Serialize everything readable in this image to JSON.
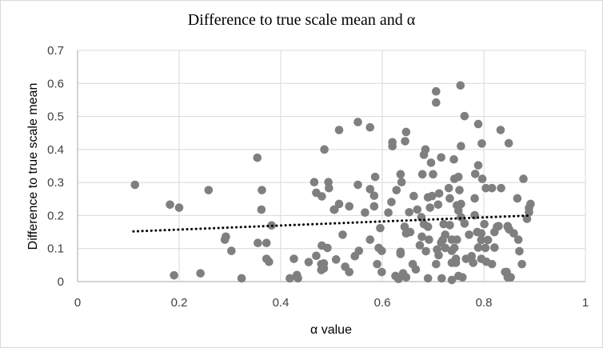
{
  "chart_data": {
    "type": "scatter",
    "title": "Difference to true scale mean and α",
    "xlabel": "α value",
    "ylabel": "Difference to true scale mean",
    "xlim": [
      0,
      1
    ],
    "ylim": [
      0,
      0.7
    ],
    "xticks": [
      "0",
      "0.2",
      "0.4",
      "0.6",
      "0.8",
      "1"
    ],
    "yticks": [
      "0",
      "0.1",
      "0.2",
      "0.3",
      "0.4",
      "0.5",
      "0.6",
      "0.7"
    ],
    "grid": true,
    "marker_color": "#7f7f7f",
    "trendline": {
      "style": "dotted",
      "color": "#000000",
      "x": [
        0.11,
        0.89
      ],
      "y": [
        0.152,
        0.2
      ]
    },
    "points": [
      [
        0.113,
        0.293
      ],
      [
        0.182,
        0.233
      ],
      [
        0.2,
        0.224
      ],
      [
        0.19,
        0.019
      ],
      [
        0.242,
        0.025
      ],
      [
        0.258,
        0.277
      ],
      [
        0.292,
        0.136
      ],
      [
        0.29,
        0.127
      ],
      [
        0.303,
        0.093
      ],
      [
        0.323,
        0.01
      ],
      [
        0.354,
        0.375
      ],
      [
        0.363,
        0.277
      ],
      [
        0.362,
        0.218
      ],
      [
        0.355,
        0.117
      ],
      [
        0.372,
        0.117
      ],
      [
        0.382,
        0.17
      ],
      [
        0.372,
        0.069
      ],
      [
        0.377,
        0.06
      ],
      [
        0.418,
        0.01
      ],
      [
        0.432,
        0.02
      ],
      [
        0.434,
        0.01
      ],
      [
        0.426,
        0.069
      ],
      [
        0.455,
        0.059
      ],
      [
        0.47,
        0.078
      ],
      [
        0.48,
        0.053
      ],
      [
        0.48,
        0.035
      ],
      [
        0.481,
        0.109
      ],
      [
        0.492,
        0.102
      ],
      [
        0.466,
        0.301
      ],
      [
        0.494,
        0.301
      ],
      [
        0.495,
        0.283
      ],
      [
        0.47,
        0.269
      ],
      [
        0.481,
        0.258
      ],
      [
        0.486,
        0.4
      ],
      [
        0.505,
        0.218
      ],
      [
        0.515,
        0.459
      ],
      [
        0.552,
        0.483
      ],
      [
        0.576,
        0.467
      ],
      [
        0.506,
        0.218
      ],
      [
        0.515,
        0.235
      ],
      [
        0.535,
        0.228
      ],
      [
        0.522,
        0.142
      ],
      [
        0.509,
        0.067
      ],
      [
        0.485,
        0.055
      ],
      [
        0.485,
        0.04
      ],
      [
        0.527,
        0.045
      ],
      [
        0.535,
        0.029
      ],
      [
        0.546,
        0.077
      ],
      [
        0.554,
        0.093
      ],
      [
        0.552,
        0.293
      ],
      [
        0.576,
        0.28
      ],
      [
        0.584,
        0.26
      ],
      [
        0.584,
        0.228
      ],
      [
        0.586,
        0.317
      ],
      [
        0.566,
        0.209
      ],
      [
        0.576,
        0.127
      ],
      [
        0.596,
        0.162
      ],
      [
        0.59,
        0.053
      ],
      [
        0.599,
        0.029
      ],
      [
        0.593,
        0.102
      ],
      [
        0.599,
        0.093
      ],
      [
        0.612,
        0.209
      ],
      [
        0.618,
        0.241
      ],
      [
        0.628,
        0.277
      ],
      [
        0.636,
        0.325
      ],
      [
        0.638,
        0.301
      ],
      [
        0.62,
        0.422
      ],
      [
        0.62,
        0.41
      ],
      [
        0.647,
        0.453
      ],
      [
        0.645,
        0.425
      ],
      [
        0.636,
        0.09
      ],
      [
        0.636,
        0.084
      ],
      [
        0.626,
        0.017
      ],
      [
        0.641,
        0.025
      ],
      [
        0.647,
        0.013
      ],
      [
        0.632,
        0.008
      ],
      [
        0.644,
        0.166
      ],
      [
        0.647,
        0.146
      ],
      [
        0.655,
        0.15
      ],
      [
        0.653,
        0.21
      ],
      [
        0.662,
        0.259
      ],
      [
        0.669,
        0.218
      ],
      [
        0.66,
        0.053
      ],
      [
        0.666,
        0.037
      ],
      [
        0.674,
        0.11
      ],
      [
        0.678,
        0.136
      ],
      [
        0.686,
        0.092
      ],
      [
        0.692,
        0.127
      ],
      [
        0.677,
        0.195
      ],
      [
        0.682,
        0.174
      ],
      [
        0.69,
        0.166
      ],
      [
        0.679,
        0.325
      ],
      [
        0.685,
        0.4
      ],
      [
        0.682,
        0.384
      ],
      [
        0.696,
        0.36
      ],
      [
        0.7,
        0.325
      ],
      [
        0.69,
        0.255
      ],
      [
        0.694,
        0.224
      ],
      [
        0.698,
        0.259
      ],
      [
        0.71,
        0.233
      ],
      [
        0.712,
        0.267
      ],
      [
        0.69,
        0.01
      ],
      [
        0.706,
        0.053
      ],
      [
        0.717,
        0.01
      ],
      [
        0.708,
        0.097
      ],
      [
        0.711,
        0.08
      ],
      [
        0.719,
        0.126
      ],
      [
        0.706,
        0.576
      ],
      [
        0.706,
        0.542
      ],
      [
        0.716,
        0.376
      ],
      [
        0.721,
        0.174
      ],
      [
        0.733,
        0.171
      ],
      [
        0.731,
        0.283
      ],
      [
        0.733,
        0.252
      ],
      [
        0.741,
        0.37
      ],
      [
        0.742,
        0.311
      ],
      [
        0.75,
        0.317
      ],
      [
        0.752,
        0.277
      ],
      [
        0.747,
        0.231
      ],
      [
        0.755,
        0.235
      ],
      [
        0.75,
        0.215
      ],
      [
        0.755,
        0.195
      ],
      [
        0.762,
        0.176
      ],
      [
        0.754,
        0.594
      ],
      [
        0.762,
        0.501
      ],
      [
        0.755,
        0.41
      ],
      [
        0.789,
        0.477
      ],
      [
        0.796,
        0.418
      ],
      [
        0.789,
        0.352
      ],
      [
        0.783,
        0.326
      ],
      [
        0.797,
        0.311
      ],
      [
        0.804,
        0.283
      ],
      [
        0.816,
        0.283
      ],
      [
        0.834,
        0.283
      ],
      [
        0.782,
        0.252
      ],
      [
        0.833,
        0.459
      ],
      [
        0.849,
        0.419
      ],
      [
        0.782,
        0.201
      ],
      [
        0.801,
        0.174
      ],
      [
        0.724,
        0.142
      ],
      [
        0.737,
        0.127
      ],
      [
        0.747,
        0.127
      ],
      [
        0.716,
        0.118
      ],
      [
        0.724,
        0.102
      ],
      [
        0.737,
        0.093
      ],
      [
        0.742,
        0.102
      ],
      [
        0.745,
        0.069
      ],
      [
        0.737,
        0.057
      ],
      [
        0.745,
        0.057
      ],
      [
        0.737,
        0.005
      ],
      [
        0.75,
        0.017
      ],
      [
        0.758,
        0.013
      ],
      [
        0.765,
        0.069
      ],
      [
        0.776,
        0.077
      ],
      [
        0.779,
        0.057
      ],
      [
        0.771,
        0.142
      ],
      [
        0.787,
        0.15
      ],
      [
        0.795,
        0.146
      ],
      [
        0.795,
        0.126
      ],
      [
        0.808,
        0.126
      ],
      [
        0.821,
        0.15
      ],
      [
        0.826,
        0.166
      ],
      [
        0.821,
        0.103
      ],
      [
        0.789,
        0.103
      ],
      [
        0.803,
        0.102
      ],
      [
        0.795,
        0.069
      ],
      [
        0.805,
        0.06
      ],
      [
        0.816,
        0.053
      ],
      [
        0.845,
        0.029
      ],
      [
        0.853,
        0.013
      ],
      [
        0.847,
        0.166
      ],
      [
        0.878,
        0.311
      ],
      [
        0.866,
        0.252
      ],
      [
        0.892,
        0.235
      ],
      [
        0.889,
        0.223
      ],
      [
        0.889,
        0.21
      ],
      [
        0.829,
        0.168
      ],
      [
        0.847,
        0.168
      ],
      [
        0.85,
        0.158
      ],
      [
        0.859,
        0.146
      ],
      [
        0.868,
        0.127
      ],
      [
        0.87,
        0.092
      ],
      [
        0.875,
        0.053
      ],
      [
        0.842,
        0.029
      ],
      [
        0.847,
        0.013
      ],
      [
        0.885,
        0.19
      ]
    ]
  }
}
